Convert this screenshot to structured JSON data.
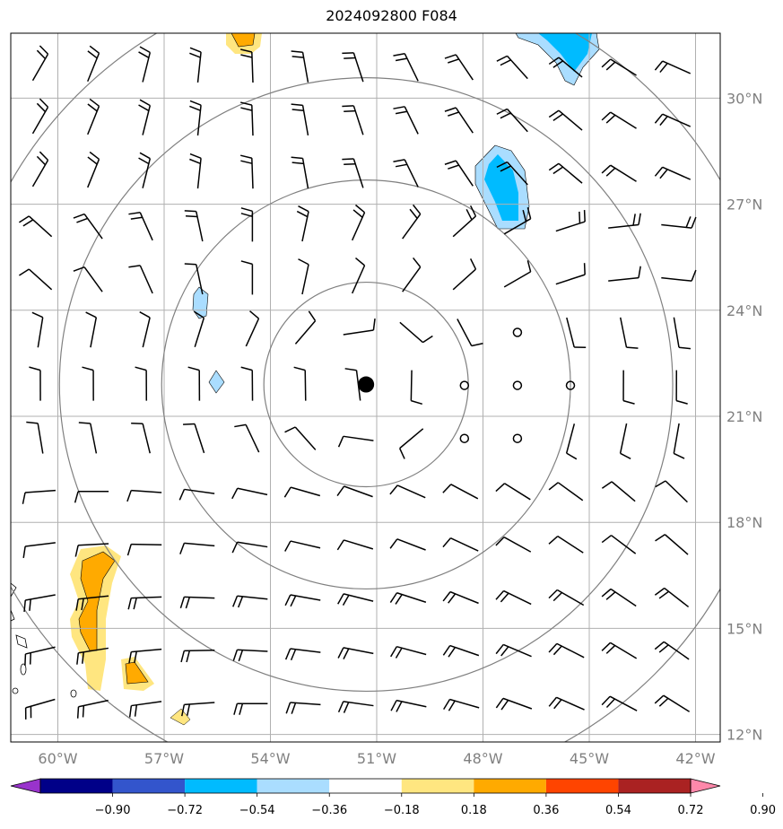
{
  "title": "2024092800 F084",
  "map": {
    "lon_range": [
      -61,
      -41.5
    ],
    "lat_range": [
      11.8,
      32.0
    ],
    "lat_labels": [
      "12°N",
      "15°N",
      "18°N",
      "21°N",
      "24°N",
      "27°N",
      "30°N"
    ],
    "lat_values": [
      12,
      15,
      18,
      21,
      24,
      27,
      30
    ],
    "lon_labels": [
      "60°W",
      "57°W",
      "54°W",
      "51°W",
      "48°W",
      "45°W",
      "42°W"
    ],
    "lon_values": [
      -60,
      -57,
      -54,
      -51,
      -48,
      -45,
      -42
    ],
    "center": {
      "lon": -51.3,
      "lat": 21.9
    },
    "range_rings_deg": [
      2.8,
      5.6,
      8.4,
      11.2
    ],
    "grid_color": "#b0b0b0",
    "ring_color": "#808080",
    "center_marker": "filled-black-circle"
  },
  "colorbar": {
    "levels": [
      "−0.90",
      "−0.72",
      "−0.54",
      "−0.36",
      "−0.18",
      "0.18",
      "0.36",
      "0.54",
      "0.72",
      "0.90"
    ],
    "colors": [
      "#9933cc",
      "#000088",
      "#3355cc",
      "#00bbff",
      "#aaddff",
      "#ffffff",
      "#ffe680",
      "#ffaa00",
      "#ff4400",
      "#aa2222",
      "#ff88aa"
    ]
  },
  "wind_barbs": "grid of wind barbs at ~1.5° spacing; calm circles near 48-45°W, 20-23°N",
  "shaded_regions": [
    {
      "name": "blue-patch-north",
      "sign": "negative"
    },
    {
      "name": "blue-patch-east",
      "sign": "negative"
    },
    {
      "name": "blue-patch-small-west",
      "sign": "negative"
    },
    {
      "name": "orange-patch-north",
      "sign": "positive"
    },
    {
      "name": "orange-patch-southwest",
      "sign": "positive"
    },
    {
      "name": "orange-patch-south-small",
      "sign": "positive"
    }
  ]
}
